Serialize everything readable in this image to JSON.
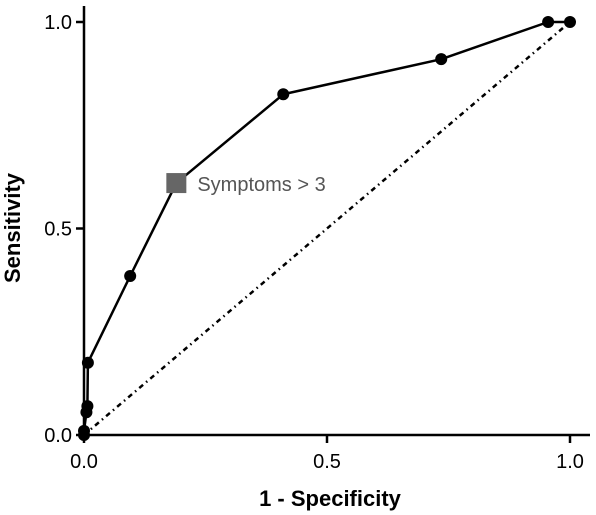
{
  "chart_data": {
    "type": "line",
    "title": "",
    "xlabel": "1 - Specificity",
    "ylabel": "Sensitivity",
    "xlim": [
      0,
      1
    ],
    "ylim": [
      0,
      1
    ],
    "x_ticks": [
      "0.0",
      "0.5",
      "1.0"
    ],
    "y_ticks": [
      "0.0",
      "0.5",
      "1.0"
    ],
    "grid": false,
    "series": [
      {
        "style": "solid line with circle markers",
        "color": "#000000",
        "points": [
          {
            "x": 0.0,
            "y": 0.0
          },
          {
            "x": 0.0,
            "y": 0.01
          },
          {
            "x": 0.005,
            "y": 0.055
          },
          {
            "x": 0.007,
            "y": 0.07
          },
          {
            "x": 0.008,
            "y": 0.175
          },
          {
            "x": 0.095,
            "y": 0.385
          },
          {
            "x": 0.19,
            "y": 0.61
          },
          {
            "x": 0.41,
            "y": 0.825
          },
          {
            "x": 0.735,
            "y": 0.91
          },
          {
            "x": 0.955,
            "y": 1.0
          },
          {
            "x": 1.0,
            "y": 1.0
          }
        ]
      },
      {
        "style": "dotted diagonal reference line",
        "color": "#000000",
        "points": [
          {
            "x": 0.0,
            "y": 0.0
          },
          {
            "x": 1.0,
            "y": 1.0
          }
        ]
      }
    ],
    "highlight": {
      "x": 0.19,
      "y": 0.61,
      "marker": "square",
      "color": "#666666",
      "label": "Symptoms > 3"
    }
  }
}
